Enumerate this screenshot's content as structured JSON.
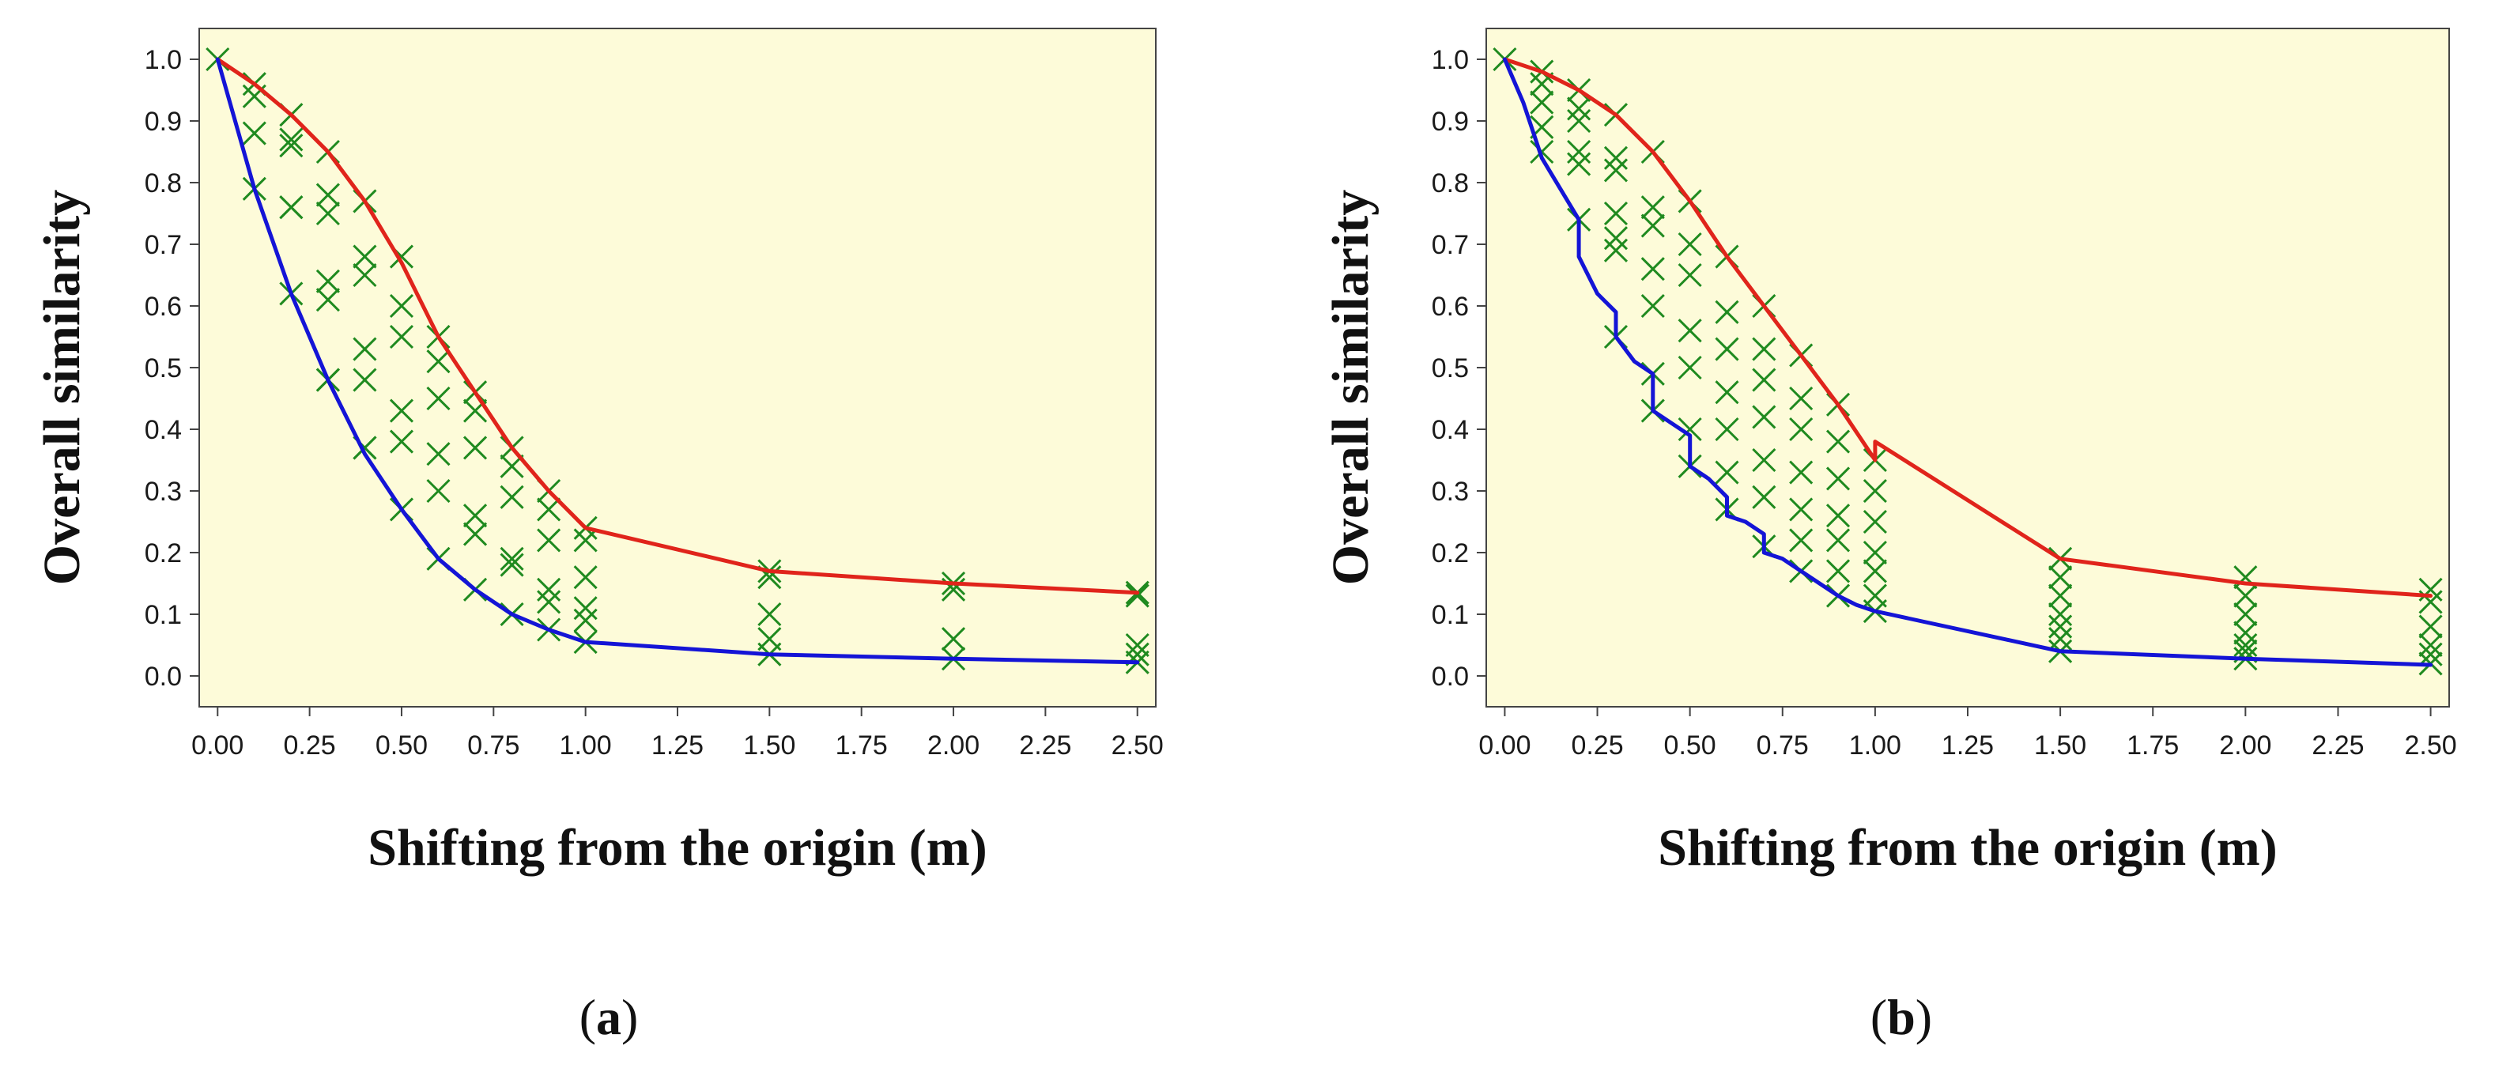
{
  "colors": {
    "plot_bg": "#fdfbd9",
    "upper_line": "#e0241b",
    "lower_line": "#1414d6",
    "markers": "#1f8a1f",
    "axis": "#444444"
  },
  "chart_data": [
    {
      "type": "line",
      "panel_label": {
        "open": "(",
        "letter": "a",
        "close": ")"
      },
      "xlabel": "Shifting from the origin (m)",
      "ylabel": "Overall similarity",
      "xlim": [
        -0.05,
        2.55
      ],
      "ylim": [
        -0.05,
        1.05
      ],
      "xticks": [
        0,
        0.25,
        0.5,
        0.75,
        1.0,
        1.25,
        1.5,
        1.75,
        2.0,
        2.25,
        2.5
      ],
      "xtick_labels": [
        "0.00",
        "0.25",
        "0.50",
        "0.75",
        "1.00",
        "1.25",
        "1.50",
        "1.75",
        "2.00",
        "2.25",
        "2.50"
      ],
      "yticks": [
        0,
        0.1,
        0.2,
        0.3,
        0.4,
        0.5,
        0.6,
        0.7,
        0.8,
        0.9,
        1.0
      ],
      "ytick_labels": [
        "0.0",
        "0.1",
        "0.2",
        "0.3",
        "0.4",
        "0.5",
        "0.6",
        "0.7",
        "0.8",
        "0.9",
        "1.0"
      ],
      "series": [
        {
          "name": "upper",
          "style": "line",
          "color_key": "upper_line",
          "x": [
            0,
            0.1,
            0.2,
            0.3,
            0.4,
            0.5,
            0.6,
            0.7,
            0.8,
            0.9,
            1.0,
            1.5,
            2.0,
            2.5
          ],
          "y": [
            1.0,
            0.96,
            0.91,
            0.85,
            0.77,
            0.67,
            0.55,
            0.46,
            0.37,
            0.3,
            0.24,
            0.17,
            0.15,
            0.135
          ]
        },
        {
          "name": "lower",
          "style": "line",
          "color_key": "lower_line",
          "x": [
            0,
            0.1,
            0.2,
            0.3,
            0.4,
            0.5,
            0.6,
            0.7,
            0.8,
            0.9,
            1.0,
            1.5,
            2.0,
            2.5
          ],
          "y": [
            1.0,
            0.79,
            0.62,
            0.48,
            0.36,
            0.27,
            0.19,
            0.14,
            0.1,
            0.075,
            0.055,
            0.035,
            0.028,
            0.022
          ]
        },
        {
          "name": "samples",
          "style": "cross",
          "color_key": "markers",
          "x": [
            0,
            0.1,
            0.1,
            0.1,
            0.1,
            0.2,
            0.2,
            0.2,
            0.2,
            0.2,
            0.2,
            0.3,
            0.3,
            0.3,
            0.3,
            0.3,
            0.3,
            0.3,
            0.4,
            0.4,
            0.4,
            0.4,
            0.4,
            0.4,
            0.4,
            0.5,
            0.5,
            0.5,
            0.5,
            0.5,
            0.5,
            0.6,
            0.6,
            0.6,
            0.6,
            0.6,
            0.6,
            0.7,
            0.7,
            0.7,
            0.7,
            0.7,
            0.7,
            0.8,
            0.8,
            0.8,
            0.8,
            0.8,
            0.8,
            0.9,
            0.9,
            0.9,
            0.9,
            0.9,
            0.9,
            1.0,
            1.0,
            1.0,
            1.0,
            1.0,
            1.0,
            1.5,
            1.5,
            1.5,
            1.5,
            1.5,
            2.0,
            2.0,
            2.0,
            2.0,
            2.5,
            2.5,
            2.5,
            2.5,
            2.5
          ],
          "y": [
            1.0,
            0.96,
            0.94,
            0.88,
            0.79,
            0.91,
            0.87,
            0.86,
            0.76,
            0.76,
            0.62,
            0.85,
            0.78,
            0.75,
            0.64,
            0.61,
            0.48,
            0.48,
            0.77,
            0.68,
            0.65,
            0.53,
            0.48,
            0.37,
            0.37,
            0.68,
            0.6,
            0.55,
            0.43,
            0.38,
            0.27,
            0.55,
            0.51,
            0.45,
            0.36,
            0.3,
            0.19,
            0.46,
            0.43,
            0.37,
            0.26,
            0.23,
            0.14,
            0.37,
            0.34,
            0.29,
            0.19,
            0.18,
            0.1,
            0.3,
            0.27,
            0.22,
            0.14,
            0.12,
            0.075,
            0.24,
            0.22,
            0.16,
            0.11,
            0.09,
            0.055,
            0.17,
            0.16,
            0.1,
            0.06,
            0.035,
            0.15,
            0.14,
            0.06,
            0.028,
            0.135,
            0.13,
            0.05,
            0.035,
            0.022
          ]
        }
      ]
    },
    {
      "type": "line",
      "panel_label": {
        "open": "(",
        "letter": "b",
        "close": ")"
      },
      "xlabel": "Shifting from the origin (m)",
      "ylabel": "Overall similarity",
      "xlim": [
        -0.05,
        2.55
      ],
      "ylim": [
        -0.05,
        1.05
      ],
      "xticks": [
        0,
        0.25,
        0.5,
        0.75,
        1.0,
        1.25,
        1.5,
        1.75,
        2.0,
        2.25,
        2.5
      ],
      "xtick_labels": [
        "0.00",
        "0.25",
        "0.50",
        "0.75",
        "1.00",
        "1.25",
        "1.50",
        "1.75",
        "2.00",
        "2.25",
        "2.50"
      ],
      "yticks": [
        0,
        0.1,
        0.2,
        0.3,
        0.4,
        0.5,
        0.6,
        0.7,
        0.8,
        0.9,
        1.0
      ],
      "ytick_labels": [
        "0.0",
        "0.1",
        "0.2",
        "0.3",
        "0.4",
        "0.5",
        "0.6",
        "0.7",
        "0.8",
        "0.9",
        "1.0"
      ],
      "series": [
        {
          "name": "upper",
          "style": "line",
          "color_key": "upper_line",
          "x": [
            0,
            0.1,
            0.2,
            0.3,
            0.4,
            0.5,
            0.6,
            0.7,
            0.8,
            0.9,
            1.0,
            1.0,
            1.5,
            2.0,
            2.5
          ],
          "y": [
            1.0,
            0.98,
            0.95,
            0.91,
            0.85,
            0.77,
            0.68,
            0.6,
            0.52,
            0.44,
            0.35,
            0.38,
            0.19,
            0.15,
            0.13
          ]
        },
        {
          "name": "lower",
          "style": "line",
          "color_key": "lower_line",
          "x": [
            0,
            0.05,
            0.1,
            0.15,
            0.2,
            0.2,
            0.25,
            0.3,
            0.3,
            0.35,
            0.4,
            0.4,
            0.45,
            0.5,
            0.5,
            0.55,
            0.6,
            0.6,
            0.65,
            0.7,
            0.7,
            0.75,
            0.8,
            0.85,
            0.9,
            0.95,
            1.0,
            1.5,
            2.0,
            2.5
          ],
          "y": [
            1.0,
            0.93,
            0.84,
            0.79,
            0.74,
            0.68,
            0.62,
            0.59,
            0.55,
            0.51,
            0.49,
            0.43,
            0.41,
            0.39,
            0.34,
            0.32,
            0.29,
            0.26,
            0.25,
            0.23,
            0.2,
            0.19,
            0.17,
            0.15,
            0.13,
            0.115,
            0.105,
            0.04,
            0.028,
            0.018
          ]
        },
        {
          "name": "samples",
          "style": "cross",
          "color_key": "markers",
          "x": [
            0,
            0.1,
            0.1,
            0.1,
            0.1,
            0.1,
            0.2,
            0.2,
            0.2,
            0.2,
            0.2,
            0.2,
            0.3,
            0.3,
            0.3,
            0.3,
            0.3,
            0.3,
            0.3,
            0.4,
            0.4,
            0.4,
            0.4,
            0.4,
            0.4,
            0.4,
            0.5,
            0.5,
            0.5,
            0.5,
            0.5,
            0.5,
            0.5,
            0.6,
            0.6,
            0.6,
            0.6,
            0.6,
            0.6,
            0.6,
            0.7,
            0.7,
            0.7,
            0.7,
            0.7,
            0.7,
            0.7,
            0.8,
            0.8,
            0.8,
            0.8,
            0.8,
            0.8,
            0.8,
            0.9,
            0.9,
            0.9,
            0.9,
            0.9,
            0.9,
            0.9,
            1.0,
            1.0,
            1.0,
            1.0,
            1.0,
            1.0,
            1.0,
            1.5,
            1.5,
            1.5,
            1.5,
            1.5,
            1.5,
            1.5,
            2.0,
            2.0,
            2.0,
            2.0,
            2.0,
            2.0,
            2.0,
            2.5,
            2.5,
            2.5,
            2.5,
            2.5,
            2.5
          ],
          "y": [
            1.0,
            0.98,
            0.96,
            0.93,
            0.89,
            0.85,
            0.95,
            0.92,
            0.9,
            0.85,
            0.83,
            0.74,
            0.91,
            0.84,
            0.82,
            0.75,
            0.71,
            0.69,
            0.55,
            0.85,
            0.76,
            0.73,
            0.66,
            0.6,
            0.49,
            0.43,
            0.77,
            0.7,
            0.65,
            0.56,
            0.5,
            0.4,
            0.34,
            0.68,
            0.59,
            0.53,
            0.46,
            0.4,
            0.33,
            0.27,
            0.6,
            0.53,
            0.48,
            0.42,
            0.35,
            0.29,
            0.21,
            0.52,
            0.45,
            0.4,
            0.33,
            0.27,
            0.22,
            0.17,
            0.44,
            0.38,
            0.32,
            0.26,
            0.22,
            0.17,
            0.13,
            0.35,
            0.3,
            0.25,
            0.2,
            0.17,
            0.13,
            0.105,
            0.19,
            0.16,
            0.13,
            0.1,
            0.08,
            0.06,
            0.04,
            0.16,
            0.13,
            0.1,
            0.07,
            0.05,
            0.04,
            0.028,
            0.14,
            0.12,
            0.08,
            0.05,
            0.035,
            0.02
          ]
        }
      ]
    }
  ]
}
